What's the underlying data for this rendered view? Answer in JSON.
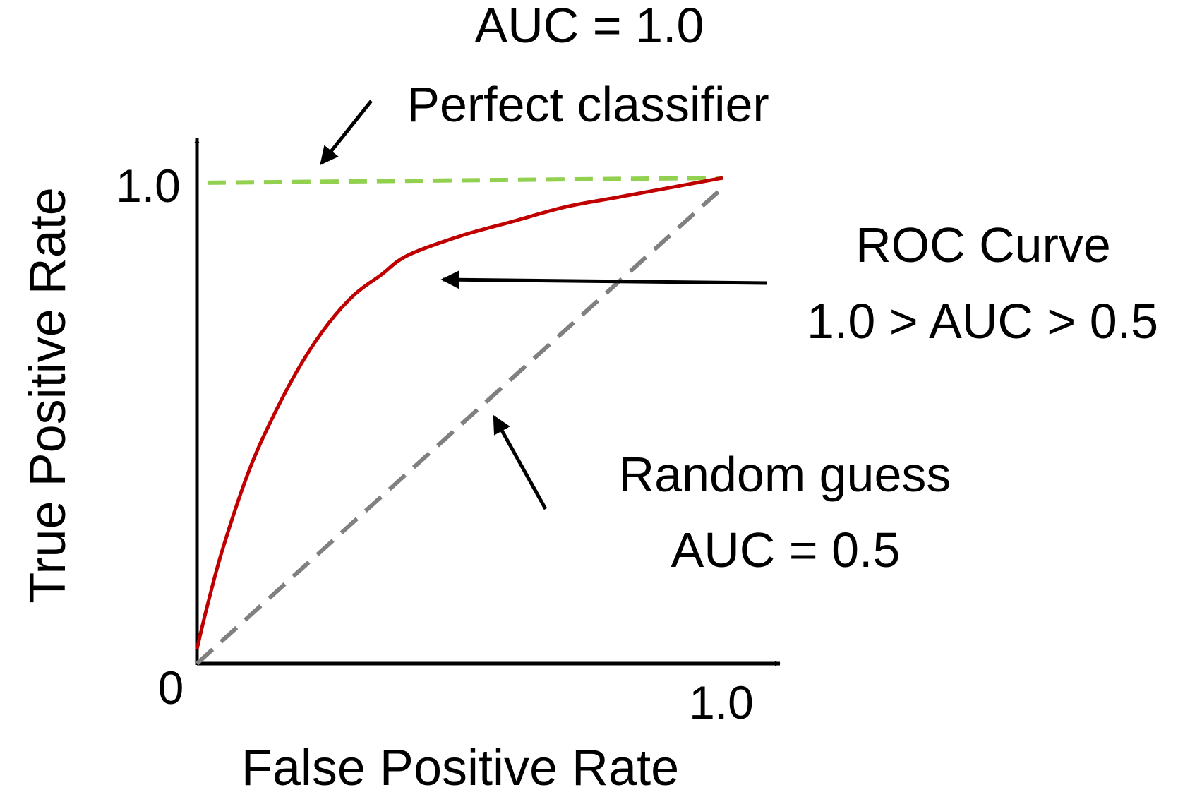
{
  "colors": {
    "axis": "#000000",
    "roc_curve": "#c00000",
    "perfect_line": "#92d050",
    "random_line": "#808080",
    "background": "#ffffff"
  },
  "annotations": {
    "perfect_auc": "AUC = 1.0",
    "perfect_label": "Perfect classifier",
    "roc_label": "ROC Curve",
    "roc_auc": "1.0 > AUC > 0.5",
    "random_label": "Random guess",
    "random_auc": "AUC = 0.5"
  },
  "chart_data": {
    "type": "line",
    "xlabel": "False Positive Rate",
    "ylabel": "True Positive Rate",
    "xlim": [
      0,
      1
    ],
    "ylim": [
      0,
      1
    ],
    "x_ticks": [
      "1.0"
    ],
    "y_ticks": [
      "1.0"
    ],
    "origin_label": "0",
    "grid": false,
    "series": [
      {
        "key": "roc",
        "style": "solid",
        "x": [
          0,
          0.02,
          0.05,
          0.1,
          0.15,
          0.2,
          0.25,
          0.3,
          0.35,
          0.4,
          0.5,
          0.6,
          0.7,
          0.8,
          0.9,
          1.0
        ],
        "y": [
          0.03,
          0.12,
          0.24,
          0.4,
          0.52,
          0.62,
          0.7,
          0.76,
          0.8,
          0.84,
          0.88,
          0.91,
          0.94,
          0.96,
          0.98,
          1.0
        ]
      },
      {
        "key": "perfect",
        "style": "dashed",
        "x": [
          0.02,
          1.0
        ],
        "y": [
          0.99,
          1.0
        ]
      },
      {
        "key": "random",
        "style": "dashed",
        "x": [
          0,
          1.0
        ],
        "y": [
          0,
          0.98
        ]
      }
    ]
  }
}
